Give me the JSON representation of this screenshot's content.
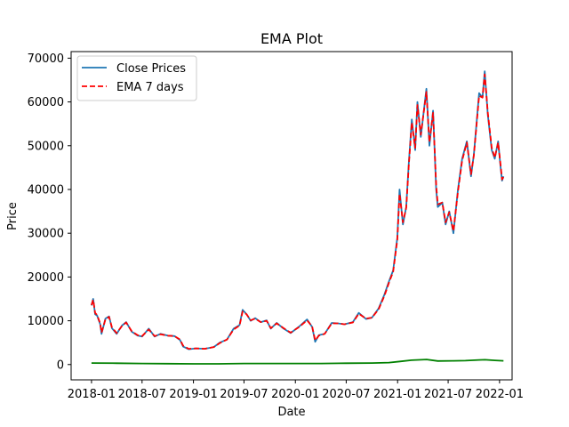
{
  "chart_data": {
    "type": "line",
    "title": "EMA Plot",
    "xlabel": "Date",
    "ylabel": "Price",
    "xlim": [
      "2017-10-20",
      "2022-02-15"
    ],
    "ylim": [
      -3500,
      71500
    ],
    "x_ticks": [
      "2018-01",
      "2018-07",
      "2019-01",
      "2019-07",
      "2020-01",
      "2020-07",
      "2021-01",
      "2021-07",
      "2022-01"
    ],
    "y_ticks": [
      0,
      10000,
      20000,
      30000,
      40000,
      50000,
      60000,
      70000
    ],
    "grid": false,
    "legend": {
      "position": "top-left",
      "entries": [
        "Close Prices",
        "EMA 7 days"
      ]
    },
    "series": [
      {
        "name": "Close Prices",
        "color": "#1f77b4",
        "style": "solid",
        "x": [
          "2018-01-01",
          "2018-01-07",
          "2018-01-14",
          "2018-01-21",
          "2018-02-01",
          "2018-02-06",
          "2018-02-20",
          "2018-03-05",
          "2018-03-15",
          "2018-04-01",
          "2018-04-20",
          "2018-05-05",
          "2018-05-25",
          "2018-06-15",
          "2018-07-01",
          "2018-07-25",
          "2018-08-15",
          "2018-09-05",
          "2018-10-01",
          "2018-10-25",
          "2018-11-14",
          "2018-11-25",
          "2018-12-15",
          "2019-01-10",
          "2019-02-10",
          "2019-03-15",
          "2019-04-05",
          "2019-05-01",
          "2019-05-25",
          "2019-06-15",
          "2019-06-26",
          "2019-07-10",
          "2019-07-25",
          "2019-08-10",
          "2019-08-30",
          "2019-09-20",
          "2019-10-05",
          "2019-10-26",
          "2019-11-20",
          "2019-12-15",
          "2020-01-15",
          "2020-02-12",
          "2020-03-01",
          "2020-03-12",
          "2020-03-25",
          "2020-04-15",
          "2020-05-10",
          "2020-06-01",
          "2020-06-25",
          "2020-07-25",
          "2020-08-15",
          "2020-09-10",
          "2020-10-01",
          "2020-10-25",
          "2020-11-15",
          "2020-12-01",
          "2020-12-16",
          "2020-12-31",
          "2021-01-08",
          "2021-01-20",
          "2021-02-01",
          "2021-02-10",
          "2021-02-21",
          "2021-03-05",
          "2021-03-13",
          "2021-03-25",
          "2021-04-14",
          "2021-04-25",
          "2021-05-08",
          "2021-05-19",
          "2021-05-25",
          "2021-06-10",
          "2021-06-22",
          "2021-07-05",
          "2021-07-20",
          "2021-08-05",
          "2021-08-20",
          "2021-09-06",
          "2021-09-21",
          "2021-10-01",
          "2021-10-20",
          "2021-11-01",
          "2021-11-09",
          "2021-11-20",
          "2021-12-04",
          "2021-12-15",
          "2021-12-27",
          "2022-01-05",
          "2022-01-10",
          "2022-01-15"
        ],
        "y": [
          13500,
          15000,
          11500,
          11200,
          9200,
          7000,
          10500,
          11000,
          8300,
          7000,
          8900,
          9700,
          7500,
          6600,
          6400,
          8200,
          6400,
          7000,
          6600,
          6500,
          5600,
          4100,
          3500,
          3700,
          3600,
          4000,
          5000,
          5700,
          8200,
          9000,
          12500,
          11500,
          10000,
          10600,
          9700,
          10100,
          8200,
          9500,
          8200,
          7200,
          8700,
          10300,
          8600,
          5200,
          6700,
          7000,
          9500,
          9400,
          9200,
          9700,
          11800,
          10400,
          10700,
          12800,
          16000,
          19000,
          21500,
          29000,
          40000,
          32000,
          36000,
          46000,
          56000,
          49000,
          60000,
          52000,
          63000,
          50000,
          58000,
          40000,
          36000,
          37000,
          32000,
          35000,
          30000,
          40000,
          47000,
          51000,
          43000,
          48000,
          62000,
          61000,
          67000,
          57000,
          49000,
          47000,
          51000,
          45000,
          42000,
          43000
        ]
      },
      {
        "name": "EMA 7 days",
        "color": "#ff0000",
        "style": "dashed",
        "x": [
          "2018-01-01",
          "2018-01-07",
          "2018-01-14",
          "2018-01-21",
          "2018-02-01",
          "2018-02-06",
          "2018-02-20",
          "2018-03-05",
          "2018-03-15",
          "2018-04-01",
          "2018-04-20",
          "2018-05-05",
          "2018-05-25",
          "2018-06-15",
          "2018-07-01",
          "2018-07-25",
          "2018-08-15",
          "2018-09-05",
          "2018-10-01",
          "2018-10-25",
          "2018-11-14",
          "2018-11-25",
          "2018-12-15",
          "2019-01-10",
          "2019-02-10",
          "2019-03-15",
          "2019-04-05",
          "2019-05-01",
          "2019-05-25",
          "2019-06-15",
          "2019-06-26",
          "2019-07-10",
          "2019-07-25",
          "2019-08-10",
          "2019-08-30",
          "2019-09-20",
          "2019-10-05",
          "2019-10-26",
          "2019-11-20",
          "2019-12-15",
          "2020-01-15",
          "2020-02-12",
          "2020-03-01",
          "2020-03-12",
          "2020-03-25",
          "2020-04-15",
          "2020-05-10",
          "2020-06-01",
          "2020-06-25",
          "2020-07-25",
          "2020-08-15",
          "2020-09-10",
          "2020-10-01",
          "2020-10-25",
          "2020-11-15",
          "2020-12-01",
          "2020-12-16",
          "2020-12-31",
          "2021-01-08",
          "2021-01-20",
          "2021-02-01",
          "2021-02-10",
          "2021-02-21",
          "2021-03-05",
          "2021-03-13",
          "2021-03-25",
          "2021-04-14",
          "2021-04-25",
          "2021-05-08",
          "2021-05-19",
          "2021-05-25",
          "2021-06-10",
          "2021-06-22",
          "2021-07-05",
          "2021-07-20",
          "2021-08-05",
          "2021-08-20",
          "2021-09-06",
          "2021-09-21",
          "2021-10-01",
          "2021-10-20",
          "2021-11-01",
          "2021-11-09",
          "2021-11-20",
          "2021-12-04",
          "2021-12-15",
          "2021-12-27",
          "2022-01-05",
          "2022-01-10",
          "2022-01-15"
        ],
        "y": [
          13600,
          14800,
          11800,
          11300,
          9400,
          7300,
          10300,
          10900,
          8500,
          7200,
          8800,
          9600,
          7600,
          6700,
          6500,
          8000,
          6500,
          6900,
          6600,
          6500,
          5700,
          4300,
          3600,
          3700,
          3600,
          4000,
          4900,
          5700,
          8000,
          8900,
          12100,
          11500,
          10100,
          10500,
          9700,
          10000,
          8300,
          9400,
          8300,
          7300,
          8600,
          10100,
          8700,
          5500,
          6600,
          7000,
          9400,
          9400,
          9200,
          9600,
          11600,
          10500,
          10700,
          12600,
          15700,
          18700,
          21200,
          28500,
          39000,
          32500,
          35800,
          45500,
          55300,
          49500,
          59300,
          52500,
          62300,
          50800,
          57500,
          41000,
          36600,
          37000,
          32500,
          34800,
          30500,
          39500,
          46600,
          50700,
          43500,
          47800,
          61400,
          61000,
          66300,
          57500,
          49500,
          47300,
          50700,
          45500,
          42300,
          42800
        ]
      },
      {
        "name": "",
        "color": "#008000",
        "style": "solid",
        "x": [
          "2018-01-01",
          "2018-04-01",
          "2018-07-01",
          "2018-10-01",
          "2019-01-01",
          "2019-04-01",
          "2019-07-01",
          "2019-10-01",
          "2020-01-01",
          "2020-04-01",
          "2020-07-01",
          "2020-10-01",
          "2020-12-01",
          "2021-01-10",
          "2021-02-20",
          "2021-04-15",
          "2021-05-25",
          "2021-07-20",
          "2021-09-01",
          "2021-10-20",
          "2021-11-10",
          "2021-12-15",
          "2022-01-15"
        ],
        "y": [
          350,
          300,
          250,
          200,
          150,
          150,
          250,
          250,
          250,
          250,
          300,
          350,
          450,
          700,
          1000,
          1150,
          800,
          850,
          900,
          1050,
          1100,
          950,
          850
        ]
      }
    ]
  }
}
